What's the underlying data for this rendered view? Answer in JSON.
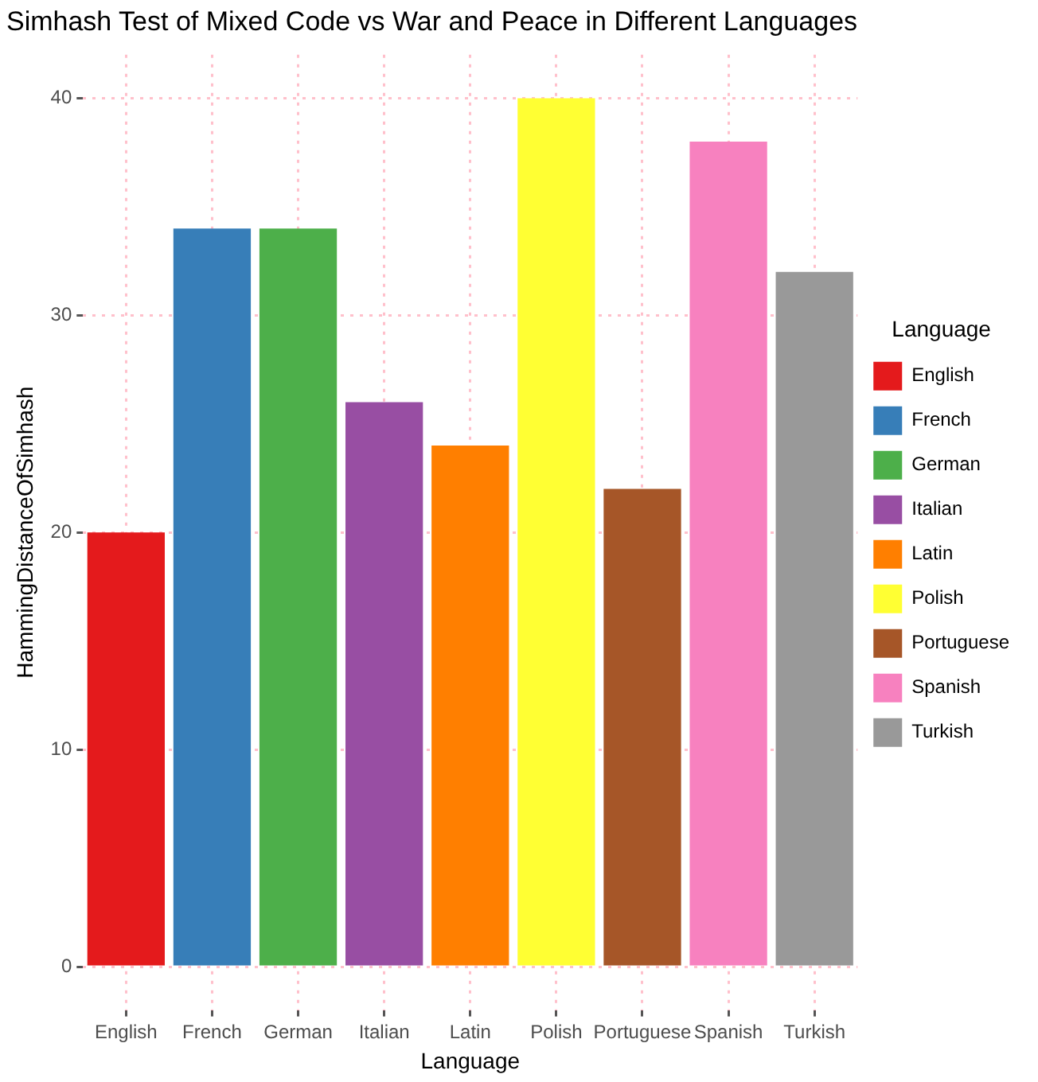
{
  "chart_data": {
    "type": "bar",
    "title": "Simhash Test of Mixed Code vs War and Peace in Different Languages",
    "xlabel": "Language",
    "ylabel": "HammingDistanceOfSimhash",
    "legend_title": "Language",
    "categories": [
      "English",
      "French",
      "German",
      "Italian",
      "Latin",
      "Polish",
      "Portuguese",
      "Spanish",
      "Turkish"
    ],
    "series": [
      {
        "name": "English",
        "color": "#e41a1c",
        "values": [
          20,
          null,
          null,
          null,
          null,
          null,
          null,
          null,
          null
        ]
      },
      {
        "name": "French",
        "color": "#377eb8",
        "values": [
          null,
          34,
          null,
          null,
          null,
          null,
          null,
          null,
          null
        ]
      },
      {
        "name": "German",
        "color": "#4daf4a",
        "values": [
          null,
          null,
          34,
          null,
          null,
          null,
          null,
          null,
          null
        ]
      },
      {
        "name": "Italian",
        "color": "#984ea3",
        "values": [
          null,
          null,
          null,
          26,
          null,
          null,
          null,
          null,
          null
        ]
      },
      {
        "name": "Latin",
        "color": "#ff7f00",
        "values": [
          null,
          null,
          null,
          null,
          24,
          null,
          null,
          null,
          null
        ]
      },
      {
        "name": "Polish",
        "color": "#ffff33",
        "values": [
          null,
          null,
          null,
          null,
          null,
          40,
          null,
          null,
          null
        ]
      },
      {
        "name": "Portuguese",
        "color": "#a65628",
        "values": [
          null,
          null,
          null,
          null,
          null,
          null,
          22,
          null,
          null
        ]
      },
      {
        "name": "Spanish",
        "color": "#f781bf",
        "values": [
          null,
          null,
          null,
          null,
          null,
          null,
          null,
          38,
          null
        ]
      },
      {
        "name": "Turkish",
        "color": "#999999",
        "values": [
          null,
          null,
          null,
          null,
          null,
          null,
          null,
          null,
          32
        ]
      }
    ],
    "ylim": [
      -2,
      42
    ],
    "yticks": [
      0,
      10,
      20,
      30,
      40
    ],
    "grid": true,
    "legend": "right"
  }
}
